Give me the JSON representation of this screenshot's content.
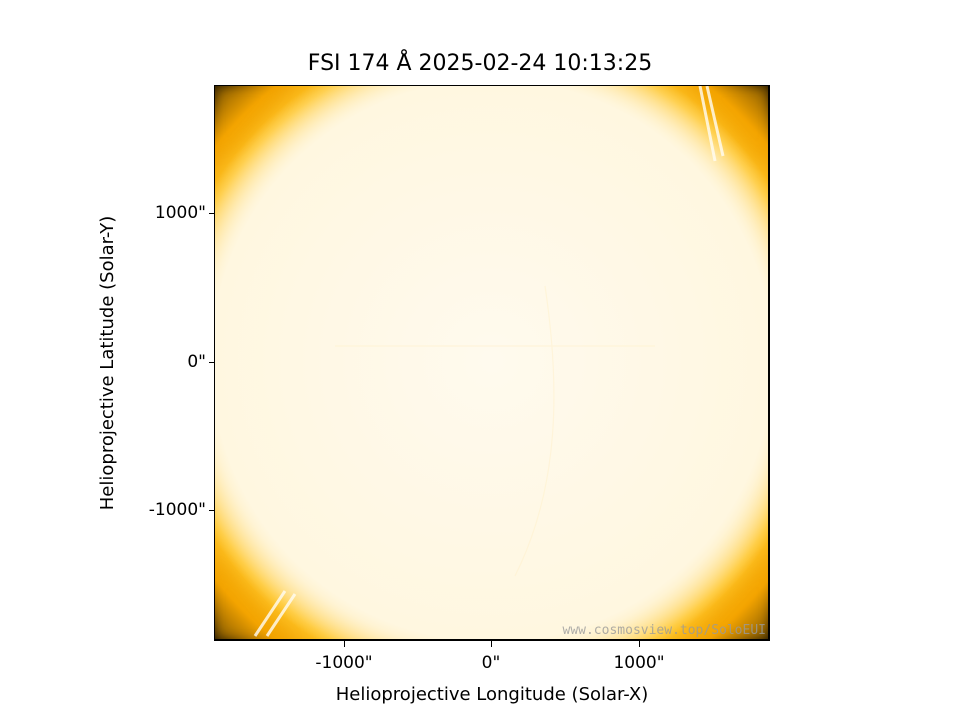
{
  "figure": {
    "title": "FSI 174 Å 2025-02-24 10:13:25",
    "xlabel": "Helioprojective Longitude (Solar-X)",
    "ylabel": "Helioprojective Latitude (Solar-Y)",
    "watermark": "www.cosmosview.top/SoloEUI",
    "colormap": [
      "#000000",
      "#f5a800",
      "#ffd24d",
      "#fff3d0",
      "#fffaea"
    ]
  },
  "axes": {
    "x_ticks": [
      {
        "value": -1000,
        "label": "-1000\""
      },
      {
        "value": 0,
        "label": "0\""
      },
      {
        "value": 1000,
        "label": "1000\""
      }
    ],
    "y_ticks": [
      {
        "value": 1000,
        "label": "1000\""
      },
      {
        "value": 0,
        "label": "0\""
      },
      {
        "value": -1000,
        "label": "-1000\""
      }
    ],
    "xlim": [
      -1880,
      1880
    ],
    "ylim": [
      -1880,
      1880
    ]
  }
}
